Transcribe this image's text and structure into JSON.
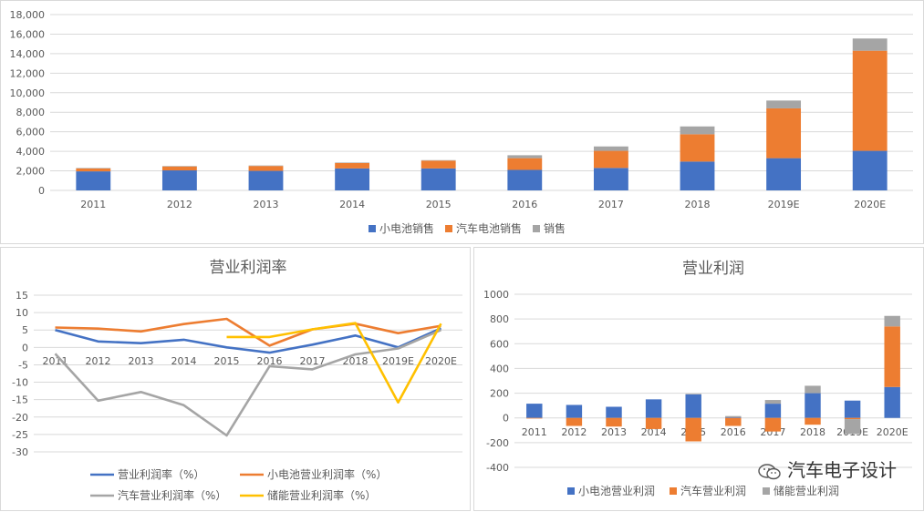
{
  "watermark": {
    "text": "汽车电子设计",
    "icon": "wechat-icon"
  },
  "chart_data": [
    {
      "type": "bar",
      "stacked": true,
      "title": "",
      "categories": [
        "2011",
        "2012",
        "2013",
        "2014",
        "2015",
        "2016",
        "2017",
        "2018",
        "2019E",
        "2020E"
      ],
      "series": [
        {
          "name": "小电池销售",
          "color": "#4472C4",
          "values": [
            1950,
            2050,
            2000,
            2250,
            2250,
            2100,
            2300,
            2950,
            3300,
            4050
          ]
        },
        {
          "name": "汽车电池销售",
          "color": "#ED7D31",
          "values": [
            300,
            400,
            500,
            550,
            800,
            1200,
            1750,
            2800,
            5100,
            10250
          ]
        },
        {
          "name": "销售",
          "color": "#A5A5A5",
          "values": [
            50,
            50,
            50,
            50,
            50,
            300,
            450,
            800,
            800,
            1250
          ]
        }
      ],
      "ylim": [
        0,
        18000
      ],
      "yticks": [
        0,
        2000,
        4000,
        6000,
        8000,
        10000,
        12000,
        14000,
        16000,
        18000
      ],
      "ytick_labels": [
        "0",
        "2,000",
        "4,000",
        "6,000",
        "8,000",
        "10,000",
        "12,000",
        "14,000",
        "16,000",
        "18,000"
      ],
      "grid": true,
      "legend": "bottom"
    },
    {
      "type": "line",
      "title": "营业利润率",
      "categories": [
        "2011",
        "2012",
        "2013",
        "2014",
        "2015",
        "2016",
        "2017",
        "2018",
        "2019E",
        "2020E"
      ],
      "series": [
        {
          "name": "营业利润率（%）",
          "color": "#4472C4",
          "values": [
            5,
            1.7,
            1.2,
            2.2,
            0,
            -1.5,
            0.8,
            3.4,
            0,
            5.5
          ]
        },
        {
          "name": "小电池营业利润率（%）",
          "color": "#ED7D31",
          "values": [
            5.7,
            5.4,
            4.6,
            6.7,
            8.2,
            0.5,
            5.2,
            6.8,
            4.1,
            6.2
          ]
        },
        {
          "name": "汽车营业利润率（%）",
          "color": "#A5A5A5",
          "values": [
            -1.8,
            -15.3,
            -12.8,
            -16.6,
            -25.3,
            -5.4,
            -6.3,
            -2,
            -0.3,
            5
          ]
        },
        {
          "name": "储能营业利润率（%）",
          "color": "#FFC000",
          "values": [
            null,
            null,
            null,
            null,
            3,
            3,
            5.2,
            7,
            -15.8,
            6.8
          ]
        }
      ],
      "ylim": [
        -30,
        15
      ],
      "yticks": [
        -30,
        -25,
        -20,
        -15,
        -10,
        -5,
        0,
        5,
        10,
        15
      ],
      "ytick_labels": [
        "-30",
        "-25",
        "-20",
        "-15",
        "-10",
        "-5",
        "0",
        "5",
        "10",
        "15"
      ],
      "grid": true,
      "legend": "bottom"
    },
    {
      "type": "bar",
      "stacked": true,
      "title": "营业利润",
      "categories": [
        "2011",
        "2012",
        "2013",
        "2014",
        "2015",
        "2016",
        "2017",
        "2018",
        "2019E",
        "2020E"
      ],
      "series": [
        {
          "name": "小电池营业利润",
          "color": "#4472C4",
          "values": [
            115,
            105,
            90,
            150,
            190,
            5,
            115,
            200,
            140,
            250
          ]
        },
        {
          "name": "汽车营业利润",
          "color": "#ED7D31",
          "values": [
            -5,
            -65,
            -70,
            -90,
            -190,
            -65,
            -110,
            -55,
            -10,
            490
          ]
        },
        {
          "name": "储能营业利润",
          "color": "#A5A5A5",
          "values": [
            0,
            0,
            0,
            0,
            5,
            10,
            30,
            60,
            -120,
            85
          ]
        }
      ],
      "ylim": [
        -400,
        1000
      ],
      "yticks": [
        -400,
        -200,
        0,
        200,
        400,
        600,
        800,
        1000
      ],
      "ytick_labels": [
        "-400",
        "-200",
        "0",
        "200",
        "400",
        "600",
        "800",
        "1000"
      ],
      "grid": true,
      "legend": "bottom"
    }
  ]
}
